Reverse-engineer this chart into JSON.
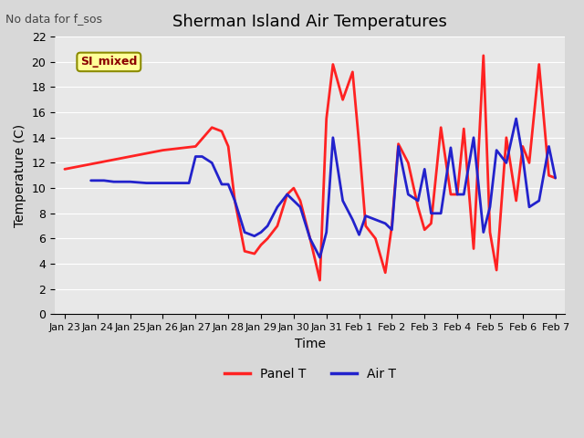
{
  "title": "Sherman Island Air Temperatures",
  "no_data_text": "No data for f_sos",
  "xlabel": "Time",
  "ylabel": "Temperature (C)",
  "ylim": [
    0,
    22
  ],
  "background_color": "#e8e8e8",
  "plot_bg_color": "#e8e8e8",
  "legend_label_box": "SI_mixed",
  "legend_box_color": "#ffff99",
  "legend_box_edge": "#8B8B00",
  "legend_box_text_color": "#8B0000",
  "x_tick_labels": [
    "Jan 23",
    "Jan 24",
    "Jan 25",
    "Jan 26",
    "Jan 27",
    "Jan 28",
    "Jan 29",
    "Jan 30",
    "Jan 31",
    "Feb 1",
    "Feb 2",
    "Feb 3",
    "Feb 4",
    "Feb 5",
    "Feb 6",
    "Feb 7"
  ],
  "panel_t_color": "#ff2222",
  "air_t_color": "#2222cc",
  "panel_t_label": "Panel T",
  "air_t_label": "Air T",
  "panel_t_x": [
    0,
    1,
    2,
    3,
    4,
    4.5,
    4.8,
    5.0,
    5.2,
    5.5,
    5.8,
    6.0,
    6.2,
    6.5,
    6.8,
    7.0,
    7.2,
    7.5,
    7.8,
    8.0,
    8.2,
    8.5,
    8.8,
    9.0,
    9.2,
    9.5,
    9.8,
    10.0,
    10.2,
    10.5,
    10.8,
    11.0,
    11.2,
    11.5,
    11.8,
    12.0,
    12.2,
    12.5,
    12.8,
    13.0,
    13.2,
    13.5,
    13.8,
    14.0,
    14.2,
    14.5,
    14.8,
    15.0
  ],
  "panel_t_y": [
    11.5,
    12.0,
    12.5,
    13.0,
    13.3,
    14.8,
    14.5,
    13.3,
    9.0,
    5.0,
    4.8,
    5.5,
    6.0,
    7.0,
    9.5,
    10.0,
    9.0,
    6.0,
    2.7,
    15.5,
    19.8,
    17.0,
    19.2,
    13.5,
    7.0,
    6.0,
    3.3,
    7.0,
    13.5,
    12.0,
    8.5,
    6.7,
    7.2,
    14.8,
    9.5,
    9.5,
    14.7,
    5.2,
    20.5,
    6.5,
    3.5,
    14.0,
    9.0,
    13.3,
    12.0,
    19.8,
    11.0,
    10.8
  ],
  "air_t_x": [
    0.8,
    1.2,
    1.5,
    2.0,
    2.5,
    3.0,
    3.5,
    3.8,
    4.0,
    4.2,
    4.5,
    4.8,
    5.0,
    5.2,
    5.5,
    5.8,
    6.0,
    6.2,
    6.5,
    6.8,
    7.0,
    7.2,
    7.5,
    7.8,
    8.0,
    8.2,
    8.5,
    8.8,
    9.0,
    9.2,
    9.5,
    9.8,
    10.0,
    10.2,
    10.5,
    10.8,
    11.0,
    11.2,
    11.5,
    11.8,
    12.0,
    12.2,
    12.5,
    12.8,
    13.0,
    13.2,
    13.5,
    13.8,
    14.0,
    14.2,
    14.5,
    14.8,
    15.0
  ],
  "air_t_y": [
    10.6,
    10.6,
    10.5,
    10.5,
    10.4,
    10.4,
    10.4,
    10.4,
    12.5,
    12.5,
    12.0,
    10.3,
    10.3,
    9.0,
    6.5,
    6.2,
    6.5,
    7.0,
    8.5,
    9.5,
    9.0,
    8.5,
    6.0,
    4.5,
    6.5,
    14.0,
    9.0,
    7.5,
    6.3,
    7.8,
    7.5,
    7.2,
    6.7,
    13.3,
    9.5,
    9.0,
    11.5,
    8.0,
    8.0,
    13.2,
    9.5,
    9.5,
    14.0,
    6.5,
    8.5,
    13.0,
    12.0,
    15.5,
    12.5,
    8.5,
    9.0,
    13.3,
    10.8
  ]
}
